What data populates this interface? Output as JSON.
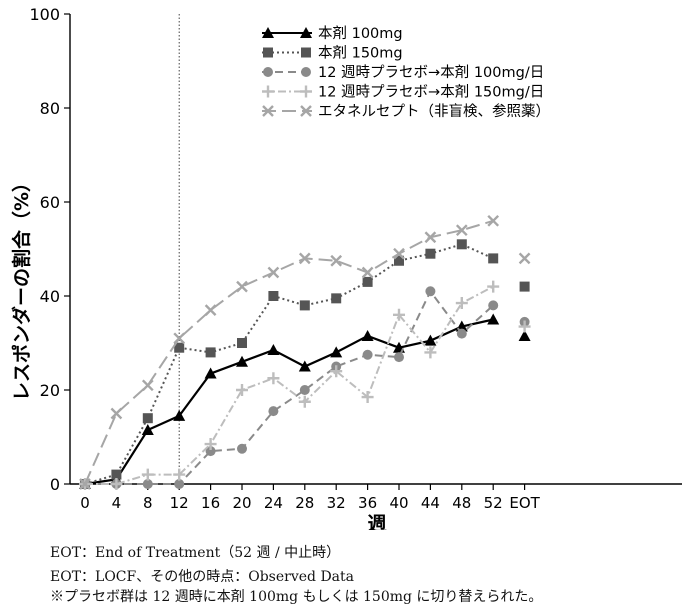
{
  "chart_data": {
    "type": "line",
    "title": "",
    "xlabel": "週",
    "ylabel": "レスポンダーの割合（%）",
    "ylim": [
      0,
      100
    ],
    "yticks": [
      0,
      20,
      40,
      60,
      80,
      100
    ],
    "categories": [
      "0",
      "4",
      "8",
      "12",
      "16",
      "20",
      "24",
      "28",
      "32",
      "36",
      "40",
      "44",
      "48",
      "52",
      "EOT"
    ],
    "reference_line_at": "12",
    "legend_position": "top-center",
    "grid": false,
    "series": [
      {
        "name": "本剤 100mg",
        "color": "#000000",
        "dash": "solid",
        "marker": "triangle",
        "values": [
          0,
          1,
          11.5,
          14.5,
          23.5,
          26,
          28.5,
          25,
          28,
          31.5,
          29,
          30.5,
          33.5,
          35,
          31.5
        ]
      },
      {
        "name": "本剤 150mg",
        "color": "#555555",
        "dash": "dotted",
        "marker": "square",
        "values": [
          0,
          2,
          14,
          29,
          28,
          30,
          40,
          38,
          39.5,
          43,
          47.5,
          49,
          51,
          48,
          42
        ]
      },
      {
        "name": "12 週時プラセボ→本剤 100mg/日",
        "color": "#8a8a8a",
        "dash": "dashed",
        "marker": "circle",
        "values": [
          0,
          0,
          0,
          0,
          7,
          7.5,
          15.5,
          20,
          25,
          27.5,
          27,
          41,
          32,
          38,
          34.5
        ]
      },
      {
        "name": "12 週時プラセボ→本剤 150mg/日",
        "color": "#bdbdbd",
        "dash": "dashdot",
        "marker": "plus",
        "values": [
          0,
          0,
          2,
          2,
          8.5,
          20,
          22.5,
          17.5,
          24,
          18.5,
          36,
          28,
          38.5,
          42,
          33.5
        ]
      },
      {
        "name": "エタネルセプト（非盲検、参照薬）",
        "color": "#a6a6a6",
        "dash": "longdash",
        "marker": "x",
        "values": [
          0,
          15,
          21,
          31,
          37,
          42,
          45,
          48,
          47.5,
          45,
          49,
          52.5,
          54,
          56,
          48
        ]
      }
    ]
  },
  "footnotes": [
    "EOT：End of Treatment（52 週 / 中止時）",
    "EOT：LOCF、その他の時点：Observed Data",
    "※プラセボ群は 12 週時に本剤 100mg もしくは 150mg に切り替えられた。"
  ]
}
